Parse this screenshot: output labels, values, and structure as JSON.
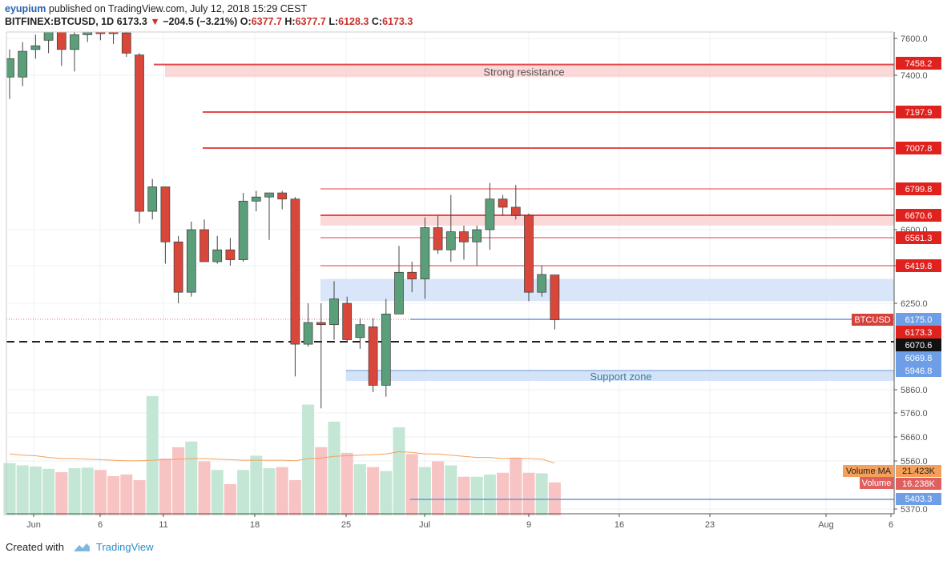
{
  "header": {
    "author": "eyupium",
    "published_text": "published on TradingView.com, July 12, 2018 15:29 CEST",
    "symbol": "BITFINEX:BTCUSD, 1D",
    "last": "6173.3",
    "change": "−204.5 (−3.21%)",
    "o_label": "O:",
    "o": "6377.7",
    "h_label": "H:",
    "h": "6377.7",
    "l_label": "L:",
    "l": "6128.3",
    "c_label": "C:",
    "c": "6173.3"
  },
  "footer": {
    "created_with": "Created with",
    "brand": "TradingView"
  },
  "colors": {
    "up": "#5b9e7a",
    "down": "#d9473b",
    "up_vol": "#c4e6d5",
    "down_vol": "#f7c3c3",
    "ma": "#f5a05a",
    "resistance": "#e8494a",
    "support": "#6b97d6"
  },
  "chart_data": {
    "type": "candlestick",
    "symbol": "BITFINEX:BTCUSD",
    "timeframe": "1D",
    "x_ticks": [
      "Jun",
      "6",
      "11",
      "18",
      "25",
      "Jul",
      "9",
      "16",
      "23",
      "Aug",
      "6"
    ],
    "y_ticks": [
      "7600.0",
      "7400.0",
      "6600.0",
      "6420.0",
      "6250.0",
      "5860.0",
      "5760.0",
      "5660.0",
      "5560.0",
      "5370.0"
    ],
    "candles": [
      {
        "d": "2018-05-31",
        "o": 7390,
        "h": 7540,
        "l": 7270,
        "c": 7490
      },
      {
        "d": "2018-06-01",
        "o": 7390,
        "h": 7580,
        "l": 7340,
        "c": 7530
      },
      {
        "d": "2018-06-02",
        "o": 7540,
        "h": 7620,
        "l": 7490,
        "c": 7560
      },
      {
        "d": "2018-06-03",
        "o": 7590,
        "h": 7700,
        "l": 7520,
        "c": 7700
      },
      {
        "d": "2018-06-04",
        "o": 7700,
        "h": 7720,
        "l": 7450,
        "c": 7540
      },
      {
        "d": "2018-06-05",
        "o": 7540,
        "h": 7680,
        "l": 7420,
        "c": 7620
      },
      {
        "d": "2018-06-06",
        "o": 7620,
        "h": 7700,
        "l": 7580,
        "c": 7650
      },
      {
        "d": "2018-06-07",
        "o": 7650,
        "h": 7800,
        "l": 7590,
        "c": 7640
      },
      {
        "d": "2018-06-08",
        "o": 7640,
        "h": 7660,
        "l": 7570,
        "c": 7630
      },
      {
        "d": "2018-06-09",
        "o": 7630,
        "h": 7660,
        "l": 7500,
        "c": 7520
      },
      {
        "d": "2018-06-10",
        "o": 7510,
        "h": 7520,
        "l": 6630,
        "c": 6690
      },
      {
        "d": "2018-06-11",
        "o": 6690,
        "h": 6850,
        "l": 6650,
        "c": 6810
      },
      {
        "d": "2018-06-12",
        "o": 6810,
        "h": 6810,
        "l": 6430,
        "c": 6540
      },
      {
        "d": "2018-06-13",
        "o": 6540,
        "h": 6570,
        "l": 6250,
        "c": 6300
      },
      {
        "d": "2018-06-14",
        "o": 6300,
        "h": 6640,
        "l": 6280,
        "c": 6600
      },
      {
        "d": "2018-06-15",
        "o": 6600,
        "h": 6650,
        "l": 6440,
        "c": 6440
      },
      {
        "d": "2018-06-16",
        "o": 6440,
        "h": 6570,
        "l": 6430,
        "c": 6500
      },
      {
        "d": "2018-06-17",
        "o": 6500,
        "h": 6560,
        "l": 6420,
        "c": 6450
      },
      {
        "d": "2018-06-18",
        "o": 6450,
        "h": 6780,
        "l": 6440,
        "c": 6740
      },
      {
        "d": "2018-06-19",
        "o": 6740,
        "h": 6790,
        "l": 6690,
        "c": 6760
      },
      {
        "d": "2018-06-20",
        "o": 6760,
        "h": 6770,
        "l": 6550,
        "c": 6780
      },
      {
        "d": "2018-06-21",
        "o": 6780,
        "h": 6790,
        "l": 6700,
        "c": 6750
      },
      {
        "d": "2018-06-22",
        "o": 6750,
        "h": 6760,
        "l": 5920,
        "c": 6060
      },
      {
        "d": "2018-06-23",
        "o": 6060,
        "h": 6250,
        "l": 6050,
        "c": 6160
      },
      {
        "d": "2018-06-24",
        "o": 6160,
        "h": 6250,
        "l": 5780,
        "c": 6150
      },
      {
        "d": "2018-06-25",
        "o": 6150,
        "h": 6350,
        "l": 6080,
        "c": 6270
      },
      {
        "d": "2018-06-26",
        "o": 6250,
        "h": 6280,
        "l": 6070,
        "c": 6080
      },
      {
        "d": "2018-06-27",
        "o": 6090,
        "h": 6180,
        "l": 6040,
        "c": 6150
      },
      {
        "d": "2018-06-28",
        "o": 6140,
        "h": 6180,
        "l": 5850,
        "c": 5880
      },
      {
        "d": "2018-06-29",
        "o": 5880,
        "h": 6270,
        "l": 5830,
        "c": 6200
      },
      {
        "d": "2018-06-30",
        "o": 6200,
        "h": 6520,
        "l": 6200,
        "c": 6390
      },
      {
        "d": "2018-07-01",
        "o": 6390,
        "h": 6440,
        "l": 6300,
        "c": 6360
      },
      {
        "d": "2018-07-02",
        "o": 6360,
        "h": 6660,
        "l": 6270,
        "c": 6610
      },
      {
        "d": "2018-07-03",
        "o": 6610,
        "h": 6670,
        "l": 6480,
        "c": 6500
      },
      {
        "d": "2018-07-04",
        "o": 6500,
        "h": 6770,
        "l": 6440,
        "c": 6590
      },
      {
        "d": "2018-07-05",
        "o": 6590,
        "h": 6620,
        "l": 6450,
        "c": 6540
      },
      {
        "d": "2018-07-06",
        "o": 6540,
        "h": 6620,
        "l": 6420,
        "c": 6600
      },
      {
        "d": "2018-07-07",
        "o": 6600,
        "h": 6830,
        "l": 6500,
        "c": 6750
      },
      {
        "d": "2018-07-08",
        "o": 6750,
        "h": 6770,
        "l": 6670,
        "c": 6710
      },
      {
        "d": "2018-07-09",
        "o": 6710,
        "h": 6820,
        "l": 6650,
        "c": 6670
      },
      {
        "d": "2018-07-10",
        "o": 6670,
        "h": 6680,
        "l": 6260,
        "c": 6300
      },
      {
        "d": "2018-07-11",
        "o": 6300,
        "h": 6420,
        "l": 6280,
        "c": 6380
      },
      {
        "d": "2018-07-12",
        "o": 6378,
        "h": 6378,
        "l": 6128,
        "c": 6173
      }
    ],
    "volume": [
      0.92,
      0.88,
      0.86,
      0.82,
      0.76,
      0.83,
      0.84,
      0.8,
      0.69,
      0.72,
      0.62,
      2.1,
      1.0,
      1.2,
      1.3,
      0.95,
      0.8,
      0.55,
      0.8,
      1.05,
      0.83,
      0.85,
      0.62,
      1.95,
      1.2,
      1.65,
      1.1,
      0.9,
      0.85,
      0.78,
      1.55,
      1.08,
      0.85,
      0.95,
      0.88,
      0.68,
      0.68,
      0.72,
      0.75,
      1.0,
      0.75,
      0.74,
      0.58
    ],
    "volume_ma": [
      1.08,
      1.06,
      1.05,
      1.02,
      1.0,
      1.0,
      0.99,
      0.98,
      0.97,
      0.96,
      0.96,
      0.97,
      0.98,
      0.99,
      1.0,
      1.0,
      0.99,
      0.98,
      0.97,
      0.97,
      0.97,
      0.97,
      0.96,
      1.0,
      1.01,
      1.04,
      1.05,
      1.06,
      1.07,
      1.08,
      1.12,
      1.11,
      1.08,
      1.08,
      1.06,
      1.04,
      1.02,
      1.02,
      1.0,
      1.01,
      1.0,
      0.99,
      0.92
    ],
    "volume_axis_label": "5403.3",
    "levels": {
      "strong_resistance": {
        "label": "Strong resistance",
        "top": 7458.2,
        "bottom": 7390
      },
      "resistance_lines": [
        7458.2,
        7197.9,
        7007.8,
        6799.8,
        6670.6,
        6561.3,
        6419.8
      ],
      "resistance_band": [
        6620,
        6670.6
      ],
      "blue_zone": [
        6260,
        6360
      ],
      "support_zone": {
        "label": "Support zone",
        "top": 5946.8,
        "bottom": 5900
      },
      "dashed_line": 6070.6,
      "current_price_line": 6175.0
    },
    "price_tags": [
      {
        "value": "7458.2",
        "kind": "red"
      },
      {
        "value": "7197.9",
        "kind": "red"
      },
      {
        "value": "7007.8",
        "kind": "red"
      },
      {
        "value": "6799.8",
        "kind": "red"
      },
      {
        "value": "6670.6",
        "kind": "red"
      },
      {
        "value": "6561.3",
        "kind": "red"
      },
      {
        "value": "6419.8",
        "kind": "red"
      },
      {
        "value": "6175.0",
        "kind": "blue"
      },
      {
        "value": "6173.3",
        "kind": "red"
      },
      {
        "value": "6070.6",
        "kind": "black"
      },
      {
        "value": "6069.8",
        "kind": "blue"
      },
      {
        "value": "5946.8",
        "kind": "blue"
      }
    ],
    "symbol_badge": "BTCUSD",
    "volume_ma_tag": {
      "label": "Volume MA",
      "value": "21.423K"
    },
    "volume_tag": {
      "label": "Volume",
      "value": "16.238K"
    },
    "volume_line_tag": "5403.3"
  }
}
